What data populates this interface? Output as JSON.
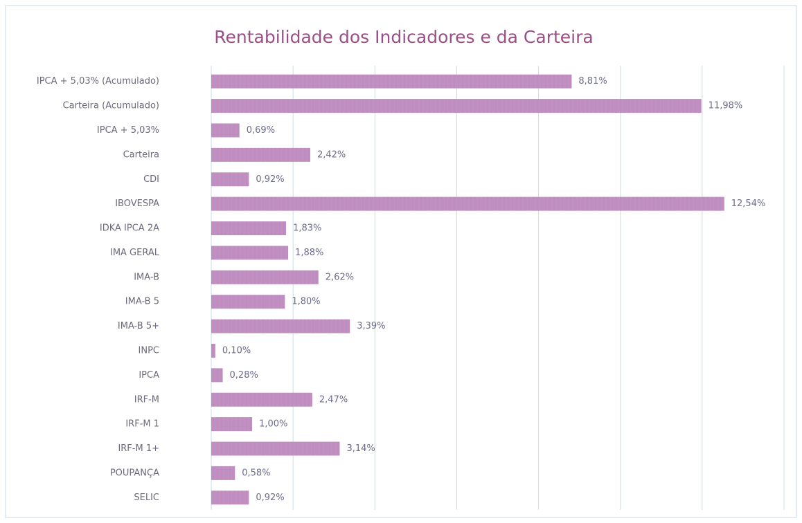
{
  "chart_data": {
    "type": "hbar",
    "title": "Rentabilidade dos Indicadores e da Carteira",
    "categories": [
      "IPCA + 5,03% (Acumulado)",
      "Carteira (Acumulado)",
      "IPCA + 5,03%",
      "Carteira",
      "CDI",
      "IBOVESPA",
      "IDKA IPCA 2A",
      "IMA GERAL",
      "IMA-B",
      "IMA-B 5",
      "IMA-B 5+",
      "INPC",
      "IPCA",
      "IRF-M",
      "IRF-M 1",
      "IRF-M 1+",
      "POUPANÇA",
      "SELIC"
    ],
    "values": [
      8.81,
      11.98,
      0.69,
      2.42,
      0.92,
      12.54,
      1.83,
      1.88,
      2.62,
      1.8,
      3.39,
      0.1,
      0.28,
      2.47,
      1.0,
      3.14,
      0.58,
      0.92
    ],
    "value_labels": [
      "8,81%",
      "11,98%",
      "0,69%",
      "2,42%",
      "0,92%",
      "12,54%",
      "1,83%",
      "1,88%",
      "2,62%",
      "1,80%",
      "3,39%",
      "0,10%",
      "0,28%",
      "2,47%",
      "1,00%",
      "3,14%",
      "0,58%",
      "0,92%"
    ],
    "color": "#c28fc0",
    "xlim": [
      0,
      14
    ],
    "xticks": [
      0,
      2,
      4,
      6,
      8,
      10,
      12,
      14
    ],
    "grid": true
  }
}
